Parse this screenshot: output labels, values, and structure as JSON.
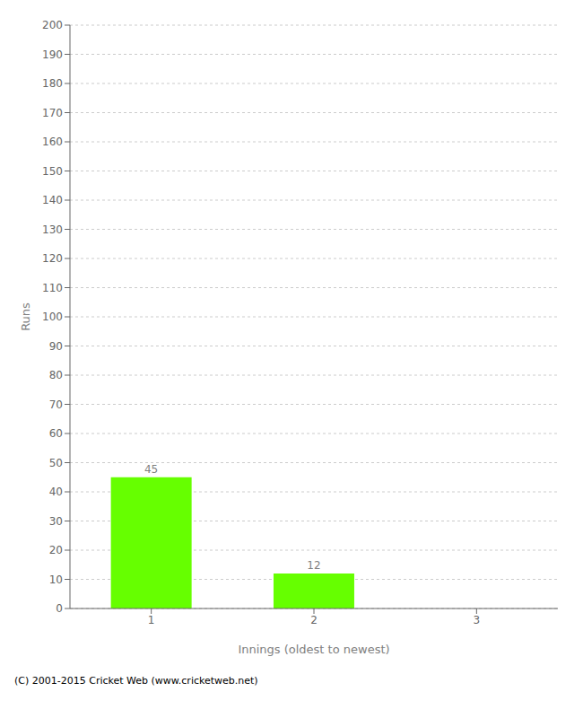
{
  "chart_data": {
    "type": "bar",
    "categories": [
      "1",
      "2",
      "3"
    ],
    "values": [
      45,
      12,
      0
    ],
    "color": "#66ff00",
    "xlabel": "Innings (oldest to newest)",
    "ylabel": "Runs",
    "ylim": [
      0,
      200
    ],
    "yticks": [
      0,
      10,
      20,
      30,
      40,
      50,
      60,
      70,
      80,
      90,
      100,
      110,
      120,
      130,
      140,
      150,
      160,
      170,
      180,
      190,
      200
    ],
    "grid": true,
    "data_labels": true,
    "annotations": [
      "(C) 2001-2015 Cricket Web (www.cricketweb.net)"
    ]
  }
}
